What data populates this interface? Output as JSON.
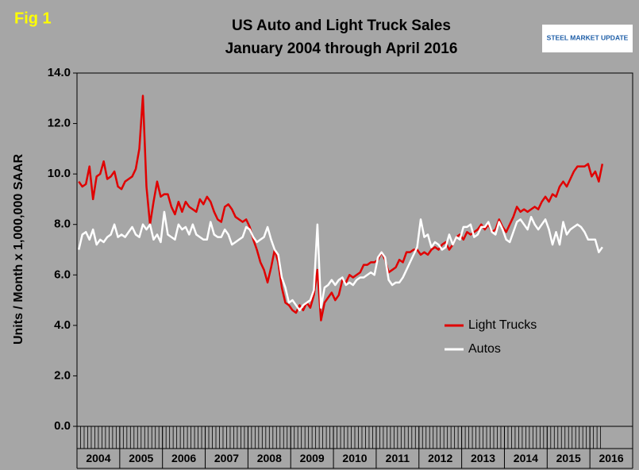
{
  "chart_data": {
    "type": "line",
    "figure_label": "Fig 1",
    "title": "US Auto and Light Truck Sales",
    "subtitle": "January 2004 through April 2016",
    "logo": "STEEL MARKET UPDATE",
    "y_label": "Units / Month x 1,000,000 SAAR",
    "xlim": [
      "2004-01",
      "2016-12"
    ],
    "x": [
      "2004-01",
      "2004-02",
      "2004-03",
      "2004-04",
      "2004-05",
      "2004-06",
      "2004-07",
      "2004-08",
      "2004-09",
      "2004-10",
      "2004-11",
      "2004-12",
      "2005-01",
      "2005-02",
      "2005-03",
      "2005-04",
      "2005-05",
      "2005-06",
      "2005-07",
      "2005-08",
      "2005-09",
      "2005-10",
      "2005-11",
      "2005-12",
      "2006-01",
      "2006-02",
      "2006-03",
      "2006-04",
      "2006-05",
      "2006-06",
      "2006-07",
      "2006-08",
      "2006-09",
      "2006-10",
      "2006-11",
      "2006-12",
      "2007-01",
      "2007-02",
      "2007-03",
      "2007-04",
      "2007-05",
      "2007-06",
      "2007-07",
      "2007-08",
      "2007-09",
      "2007-10",
      "2007-11",
      "2007-12",
      "2008-01",
      "2008-02",
      "2008-03",
      "2008-04",
      "2008-05",
      "2008-06",
      "2008-07",
      "2008-08",
      "2008-09",
      "2008-10",
      "2008-11",
      "2008-12",
      "2009-01",
      "2009-02",
      "2009-03",
      "2009-04",
      "2009-05",
      "2009-06",
      "2009-07",
      "2009-08",
      "2009-09",
      "2009-10",
      "2009-11",
      "2009-12",
      "2010-01",
      "2010-02",
      "2010-03",
      "2010-04",
      "2010-05",
      "2010-06",
      "2010-07",
      "2010-08",
      "2010-09",
      "2010-10",
      "2010-11",
      "2010-12",
      "2011-01",
      "2011-02",
      "2011-03",
      "2011-04",
      "2011-05",
      "2011-06",
      "2011-07",
      "2011-08",
      "2011-09",
      "2011-10",
      "2011-11",
      "2011-12",
      "2012-01",
      "2012-02",
      "2012-03",
      "2012-04",
      "2012-05",
      "2012-06",
      "2012-07",
      "2012-08",
      "2012-09",
      "2012-10",
      "2012-11",
      "2012-12",
      "2013-01",
      "2013-02",
      "2013-03",
      "2013-04",
      "2013-05",
      "2013-06",
      "2013-07",
      "2013-08",
      "2013-09",
      "2013-10",
      "2013-11",
      "2013-12",
      "2014-01",
      "2014-02",
      "2014-03",
      "2014-04",
      "2014-05",
      "2014-06",
      "2014-07",
      "2014-08",
      "2014-09",
      "2014-10",
      "2014-11",
      "2014-12",
      "2015-01",
      "2015-02",
      "2015-03",
      "2015-04",
      "2015-05",
      "2015-06",
      "2015-07",
      "2015-08",
      "2015-09",
      "2015-10",
      "2015-11",
      "2015-12",
      "2016-01",
      "2016-02",
      "2016-03",
      "2016-04"
    ],
    "x_group_labels": [
      "2004",
      "2005",
      "2006",
      "2007",
      "2008",
      "2009",
      "2010",
      "2011",
      "2012",
      "2013",
      "2014",
      "2015",
      "2016"
    ],
    "ylim": [
      0,
      14
    ],
    "yticks": [
      {
        "value": 0,
        "label": "0.0"
      },
      {
        "value": 2,
        "label": "2.0"
      },
      {
        "value": 4,
        "label": "4.0"
      },
      {
        "value": 6,
        "label": "6.0"
      },
      {
        "value": 8,
        "label": "8.0"
      },
      {
        "value": 10,
        "label": "10.0"
      },
      {
        "value": 12,
        "label": "12.0"
      },
      {
        "value": 14,
        "label": "14.0"
      }
    ],
    "grid": false,
    "legend": "lower-right",
    "series": [
      {
        "name": "Light Trucks",
        "color": "#e00000",
        "values": [
          9.7,
          9.5,
          9.6,
          10.3,
          9.0,
          9.9,
          10.0,
          10.5,
          9.8,
          9.9,
          10.1,
          9.5,
          9.4,
          9.7,
          9.8,
          9.9,
          10.2,
          11.0,
          13.1,
          9.5,
          8.0,
          8.9,
          9.7,
          9.1,
          9.2,
          9.2,
          8.7,
          8.4,
          8.9,
          8.5,
          8.9,
          8.7,
          8.6,
          8.5,
          9.0,
          8.8,
          9.1,
          8.9,
          8.5,
          8.2,
          8.1,
          8.7,
          8.8,
          8.6,
          8.3,
          8.2,
          8.1,
          8.2,
          7.9,
          7.4,
          7.0,
          6.5,
          6.2,
          5.7,
          6.3,
          7.0,
          6.5,
          5.5,
          4.9,
          4.8,
          4.6,
          4.5,
          4.8,
          4.6,
          4.9,
          4.7,
          5.2,
          6.2,
          4.2,
          4.9,
          5.1,
          5.3,
          5.0,
          5.2,
          5.8,
          5.7,
          6.0,
          5.9,
          6.0,
          6.1,
          6.4,
          6.4,
          6.5,
          6.5,
          6.6,
          6.9,
          6.6,
          6.1,
          6.2,
          6.3,
          6.6,
          6.5,
          6.9,
          6.9,
          7.0,
          7.0,
          6.8,
          6.9,
          6.8,
          7.0,
          7.1,
          7.0,
          7.2,
          7.3,
          7.0,
          7.2,
          7.5,
          7.6,
          7.4,
          7.7,
          7.6,
          7.7,
          7.8,
          8.0,
          7.8,
          8.0,
          7.7,
          7.8,
          8.2,
          7.9,
          7.7,
          8.0,
          8.3,
          8.7,
          8.5,
          8.6,
          8.5,
          8.6,
          8.7,
          8.6,
          8.9,
          9.1,
          8.9,
          9.2,
          9.1,
          9.5,
          9.7,
          9.5,
          9.8,
          10.1,
          10.3,
          10.3,
          10.3,
          10.4,
          9.9,
          10.1,
          9.7,
          10.4
        ]
      },
      {
        "name": "Autos",
        "color": "#ffffff",
        "values": [
          7.0,
          7.6,
          7.7,
          7.4,
          7.8,
          7.2,
          7.4,
          7.3,
          7.5,
          7.6,
          8.0,
          7.5,
          7.6,
          7.5,
          7.7,
          7.9,
          7.6,
          7.5,
          8.0,
          7.8,
          8.0,
          7.4,
          7.6,
          7.3,
          8.5,
          7.6,
          7.5,
          7.4,
          8.0,
          7.8,
          7.9,
          7.6,
          8.0,
          7.6,
          7.5,
          7.4,
          7.4,
          8.1,
          7.6,
          7.5,
          7.5,
          7.8,
          7.6,
          7.2,
          7.3,
          7.4,
          7.5,
          7.9,
          7.8,
          7.5,
          7.3,
          7.4,
          7.5,
          7.9,
          7.4,
          7.0,
          6.8,
          5.9,
          5.5,
          4.9,
          5.0,
          4.8,
          4.6,
          4.8,
          4.9,
          5.0,
          5.4,
          8.0,
          4.7,
          5.5,
          5.6,
          5.8,
          5.6,
          5.8,
          5.9,
          5.6,
          5.7,
          5.6,
          5.8,
          5.9,
          5.9,
          6.0,
          6.1,
          6.0,
          6.7,
          6.9,
          6.7,
          5.8,
          5.6,
          5.7,
          5.7,
          5.9,
          6.2,
          6.5,
          6.8,
          7.1,
          8.2,
          7.5,
          7.6,
          7.1,
          7.3,
          7.2,
          7.0,
          7.1,
          7.6,
          7.2,
          7.5,
          7.4,
          7.9,
          7.9,
          8.0,
          7.5,
          7.6,
          7.9,
          7.9,
          8.1,
          7.7,
          7.6,
          8.1,
          7.8,
          7.4,
          7.3,
          7.7,
          8.1,
          8.2,
          8.0,
          7.8,
          8.3,
          8.0,
          7.8,
          8.0,
          8.2,
          7.8,
          7.2,
          7.7,
          7.2,
          8.1,
          7.6,
          7.8,
          7.9,
          8.0,
          7.9,
          7.7,
          7.4,
          7.4,
          7.4,
          6.9,
          7.1
        ]
      }
    ]
  }
}
